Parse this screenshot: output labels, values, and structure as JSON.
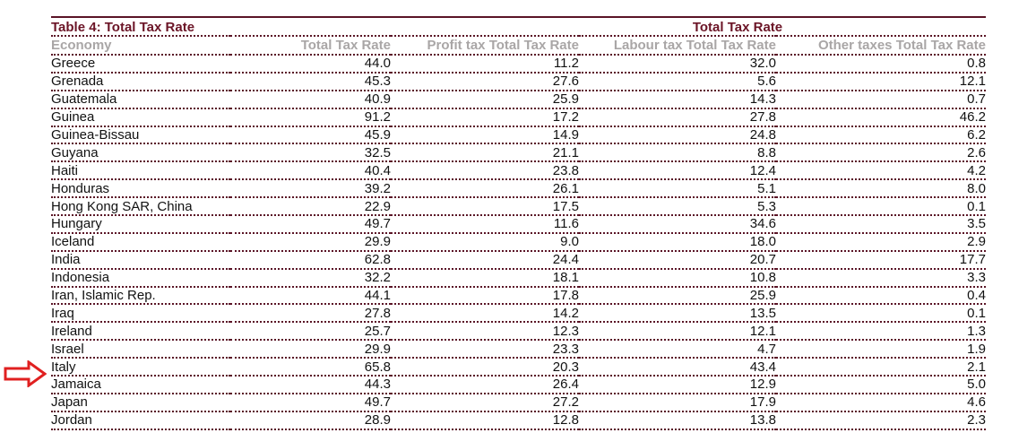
{
  "table": {
    "title": "Table 4: Total Tax Rate",
    "group_header": "Total Tax Rate",
    "columns": [
      "Economy",
      "Total Tax Rate",
      "Profit tax Total Tax Rate",
      "Labour tax Total Tax Rate",
      "Other taxes Total Tax Rate"
    ],
    "rows": [
      [
        "Greece",
        "44.0",
        "11.2",
        "32.0",
        "0.8"
      ],
      [
        "Grenada",
        "45.3",
        "27.6",
        "5.6",
        "12.1"
      ],
      [
        "Guatemala",
        "40.9",
        "25.9",
        "14.3",
        "0.7"
      ],
      [
        "Guinea",
        "91.2",
        "17.2",
        "27.8",
        "46.2"
      ],
      [
        "Guinea-Bissau",
        "45.9",
        "14.9",
        "24.8",
        "6.2"
      ],
      [
        "Guyana",
        "32.5",
        "21.1",
        "8.8",
        "2.6"
      ],
      [
        "Haiti",
        "40.4",
        "23.8",
        "12.4",
        "4.2"
      ],
      [
        "Honduras",
        "39.2",
        "26.1",
        "5.1",
        "8.0"
      ],
      [
        "Hong Kong SAR, China",
        "22.9",
        "17.5",
        "5.3",
        "0.1"
      ],
      [
        "Hungary",
        "49.7",
        "11.6",
        "34.6",
        "3.5"
      ],
      [
        "Iceland",
        "29.9",
        "9.0",
        "18.0",
        "2.9"
      ],
      [
        "India",
        "62.8",
        "24.4",
        "20.7",
        "17.7"
      ],
      [
        "Indonesia",
        "32.2",
        "18.1",
        "10.8",
        "3.3"
      ],
      [
        "Iran, Islamic Rep.",
        "44.1",
        "17.8",
        "25.9",
        "0.4"
      ],
      [
        "Iraq",
        "27.8",
        "14.2",
        "13.5",
        "0.1"
      ],
      [
        "Ireland",
        "25.7",
        "12.3",
        "12.1",
        "1.3"
      ],
      [
        "Israel",
        "29.9",
        "23.3",
        "4.7",
        "1.9"
      ],
      [
        "Italy",
        "65.8",
        "20.3",
        "43.4",
        "2.1"
      ],
      [
        "Jamaica",
        "44.3",
        "26.4",
        "12.9",
        "5.0"
      ],
      [
        "Japan",
        "49.7",
        "27.2",
        "17.9",
        "4.6"
      ],
      [
        "Jordan",
        "28.9",
        "12.8",
        "13.8",
        "2.3"
      ]
    ]
  },
  "annotation": {
    "icon": "arrow-right-icon",
    "highlighted_row": "Italy",
    "color": "#e02020"
  }
}
